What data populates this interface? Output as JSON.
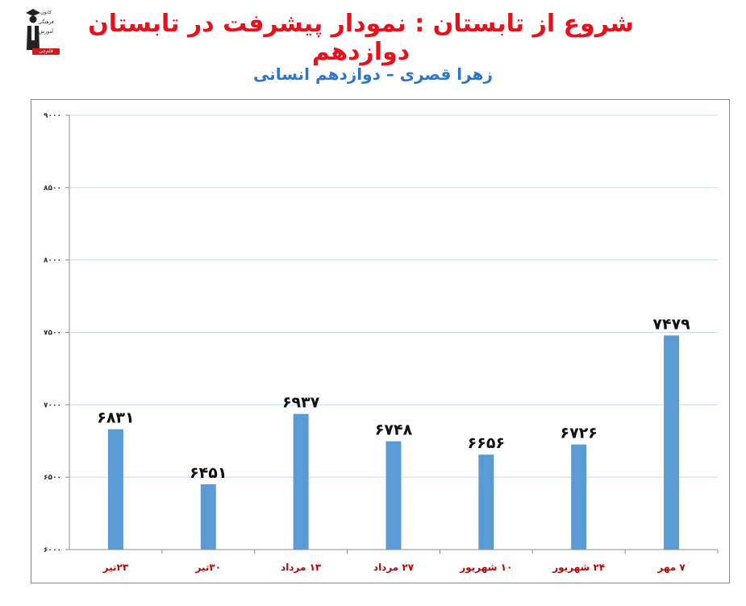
{
  "header": {
    "title": "شروع از تابستان : نمودار پیشرفت در تابستان دوازدهم",
    "subtitle": "زهرا قصری – دوازدهم انسانی"
  },
  "logo": {
    "icon": "graduate-icon",
    "line1": "کانون",
    "line2": "فرهنگی",
    "line3": "آموزش",
    "badge": "قلم‌چی"
  },
  "colors": {
    "title": "#e8101a",
    "subtitle": "#2e75c8",
    "bar": "#5b9bd5",
    "category_label": "#c00000",
    "grid": "#c6d9ee"
  },
  "chart_data": {
    "type": "bar",
    "categories": [
      "۲۳تیر",
      "۳۰تیر",
      "۱۳ مرداد",
      "۲۷ مرداد",
      "۱۰ شهریور",
      "۲۴ شهریور",
      "۷ مهر"
    ],
    "values": [
      6831,
      6451,
      6937,
      6748,
      6656,
      6726,
      7479
    ],
    "data_labels": [
      "۶۸۳۱",
      "۶۴۵۱",
      "۶۹۳۷",
      "۶۷۴۸",
      "۶۶۵۶",
      "۶۷۲۶",
      "۷۴۷۹"
    ],
    "ylim": [
      6000,
      9000
    ],
    "yticks": [
      6000,
      6500,
      7000,
      7500,
      8000,
      8500,
      9000
    ],
    "ytick_labels": [
      "۶۰۰۰",
      "۶۵۰۰",
      "۷۰۰۰",
      "۷۵۰۰",
      "۸۰۰۰",
      "۸۵۰۰",
      "۹۰۰۰"
    ],
    "grid": true,
    "legend": "none"
  }
}
